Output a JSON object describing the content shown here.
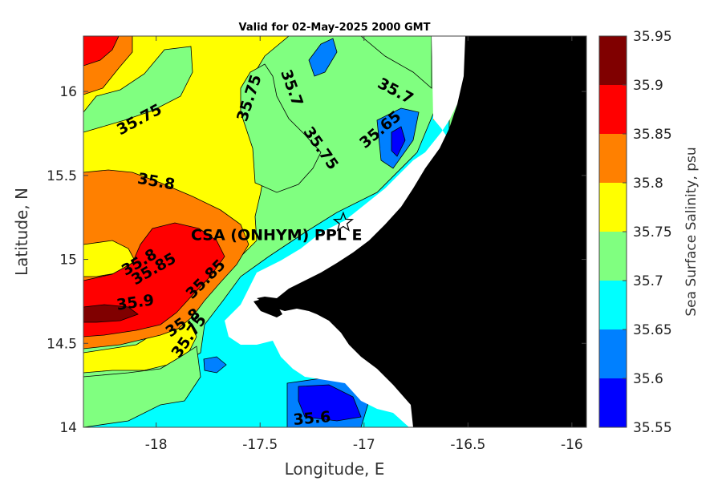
{
  "chart_data": {
    "type": "heatmap",
    "title": "Valid for 02-May-2025 2000 GMT",
    "xlabel": "Longitude, E",
    "ylabel": "Latitude, N",
    "xlim": [
      -18.35,
      -15.93
    ],
    "ylim": [
      14.0,
      16.33
    ],
    "x_ticks": [
      -18,
      -17.5,
      -17,
      -16.5,
      -16
    ],
    "x_tick_labels": [
      "-18",
      "-17.5",
      "-17",
      "-16.5",
      "-16"
    ],
    "y_ticks": [
      14,
      14.5,
      15,
      15.5,
      16
    ],
    "y_tick_labels": [
      "14",
      "14.5",
      "15",
      "15.5",
      "16"
    ],
    "colorbar": {
      "label": "Sea Surface Salinity, psu",
      "levels": [
        35.55,
        35.6,
        35.65,
        35.7,
        35.75,
        35.8,
        35.85,
        35.9,
        35.95
      ],
      "level_labels": [
        "35.55",
        "35.6",
        "35.65",
        "35.7",
        "35.75",
        "35.8",
        "35.85",
        "35.9",
        "35.95"
      ],
      "colors": [
        "#0000ff",
        "#0080ff",
        "#00ffff",
        "#80ff80",
        "#ffff00",
        "#ff8000",
        "#ff0000",
        "#800000"
      ]
    },
    "contour_labels": [
      {
        "text": "35.75",
        "lon": -18.08,
        "lat": 15.83,
        "angle": -28
      },
      {
        "text": "35.75",
        "lon": -17.55,
        "lat": 15.96,
        "angle": -72
      },
      {
        "text": "35.7",
        "lon": -17.35,
        "lat": 16.02,
        "angle": 70
      },
      {
        "text": "35.7",
        "lon": -16.85,
        "lat": 16.0,
        "angle": 28
      },
      {
        "text": "35.75",
        "lon": -17.21,
        "lat": 15.66,
        "angle": 55
      },
      {
        "text": "35.65",
        "lon": -16.92,
        "lat": 15.77,
        "angle": -40
      },
      {
        "text": "35.8",
        "lon": -18.0,
        "lat": 15.46,
        "angle": 10
      },
      {
        "text": "35.8",
        "lon": -18.08,
        "lat": 14.98,
        "angle": -30
      },
      {
        "text": "35.85",
        "lon": -18.01,
        "lat": 14.94,
        "angle": -30
      },
      {
        "text": "35.9",
        "lon": -18.1,
        "lat": 14.74,
        "angle": -8
      },
      {
        "text": "35.85",
        "lon": -17.76,
        "lat": 14.88,
        "angle": -45
      },
      {
        "text": "35.8",
        "lon": -17.87,
        "lat": 14.62,
        "angle": -35
      },
      {
        "text": "35.75",
        "lon": -17.84,
        "lat": 14.54,
        "angle": -55
      },
      {
        "text": "35.6",
        "lon": -17.25,
        "lat": 14.05,
        "angle": -5
      }
    ],
    "site": {
      "label": "CSA (ONHYM) PPL E",
      "lon": -17.1,
      "lat": 15.22,
      "marker": "star"
    },
    "land_color": "#000000",
    "no_data_color": "#ffffff",
    "grid": false
  }
}
